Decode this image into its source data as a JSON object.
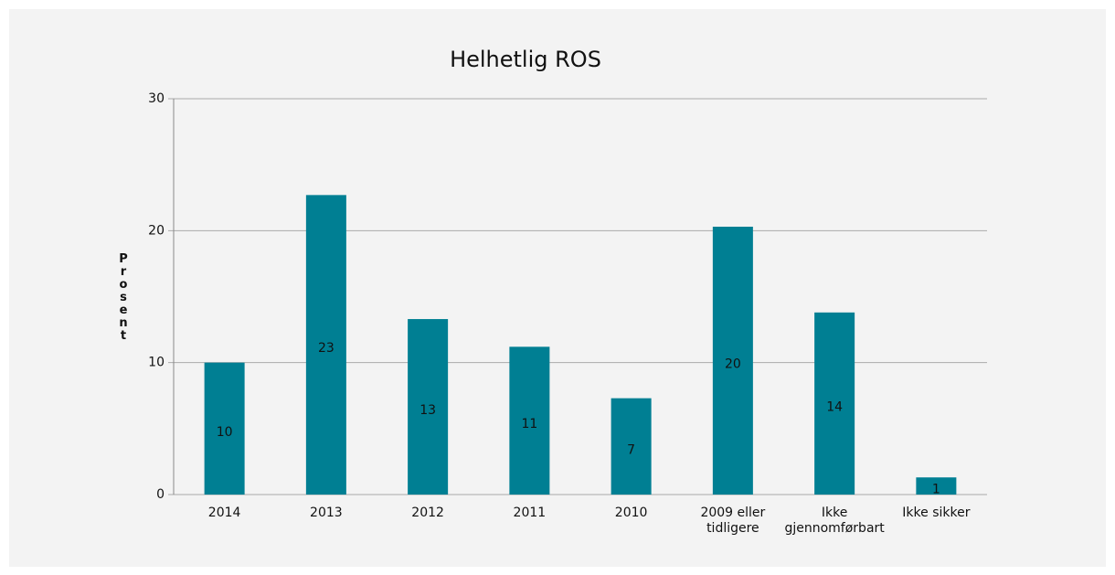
{
  "chart_data": {
    "type": "bar",
    "title": "Helhetlig ROS",
    "y_label": "Prosent",
    "categories": [
      "2014",
      "2013",
      "2012",
      "2011",
      "2010",
      "2009 eller tidligere",
      "Ikke gjennomførbart",
      "Ikke sikker"
    ],
    "values": [
      10,
      22.7,
      13.3,
      11.2,
      7.3,
      20.3,
      13.8,
      1.3
    ],
    "value_labels": [
      "10",
      "23",
      "13",
      "11",
      "7",
      "20",
      "14",
      "1"
    ],
    "color": "#007f93",
    "ylim": [
      0,
      30
    ],
    "yticks": [
      0,
      10,
      20,
      30
    ],
    "grid": true
  }
}
